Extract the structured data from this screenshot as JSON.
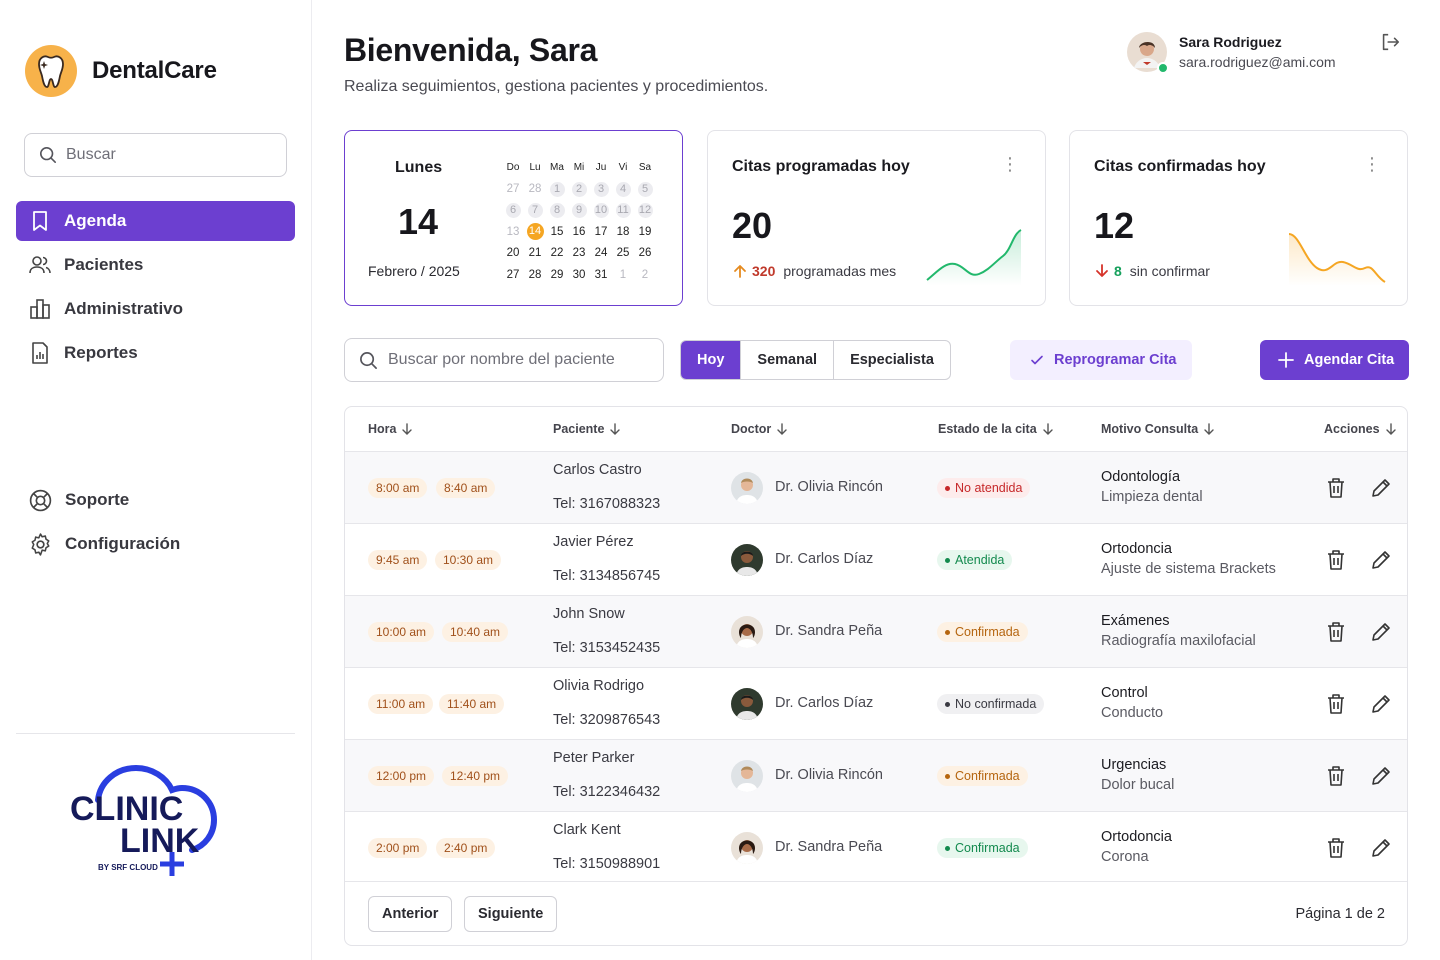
{
  "sidebar": {
    "brand": "DentalCare",
    "search_placeholder": "Buscar",
    "nav": [
      {
        "label": "Agenda",
        "active": true
      },
      {
        "label": "Pacientes"
      },
      {
        "label": "Administrativo"
      },
      {
        "label": "Reportes"
      }
    ],
    "support_label": "Soporte",
    "settings_label": "Configuración",
    "partner_logo": {
      "line1": "CLINIC",
      "line2": "LINK",
      "tagline": "BY SRF CLOUD"
    }
  },
  "header": {
    "greeting": "Bienvenida, Sara",
    "subtitle": "Realiza seguimientos, gestiona pacientes y procedimientos.",
    "user_name": "Sara Rodriguez",
    "user_email": "sara.rodriguez@ami.com"
  },
  "calendar_card": {
    "weekday": "Lunes",
    "day": "14",
    "month_year": "Febrero / 2025",
    "headers": [
      "Do",
      "Lu",
      "Ma",
      "Mi",
      "Ju",
      "Vi",
      "Sa"
    ],
    "weeks": [
      [
        "27",
        "28",
        "1",
        "2",
        "3",
        "4",
        "5"
      ],
      [
        "6",
        "7",
        "8",
        "9",
        "10",
        "11",
        "12"
      ],
      [
        "13",
        "14",
        "15",
        "16",
        "17",
        "18",
        "19"
      ],
      [
        "20",
        "21",
        "22",
        "23",
        "24",
        "25",
        "26"
      ],
      [
        "27",
        "28",
        "29",
        "30",
        "31",
        "1",
        "2"
      ]
    ]
  },
  "stats": {
    "scheduled": {
      "title": "Citas programadas hoy",
      "value": "20",
      "delta": "320",
      "delta_label": "programadas mes",
      "color": "#22b86c",
      "trend": "up"
    },
    "confirmed": {
      "title": "Citas confirmadas hoy",
      "value": "12",
      "delta": "8",
      "delta_label": "sin confirmar",
      "color": "#f5a623",
      "trend": "down"
    }
  },
  "toolbar": {
    "search_placeholder": "Buscar por nombre del paciente",
    "filters": [
      {
        "label": "Hoy",
        "active": true
      },
      {
        "label": "Semanal"
      },
      {
        "label": "Especialista"
      }
    ],
    "reschedule_label": "Reprogramar Cita",
    "book_label": "Agendar Cita",
    "accent": "#6c3fd0"
  },
  "table": {
    "headers": [
      "Hora",
      "Paciente",
      "Doctor",
      "Estado de la cita",
      "Motivo Consulta",
      "Acciones"
    ],
    "rows": [
      {
        "start": "8:00 am",
        "end": "8:40 am",
        "patient": "Carlos Castro",
        "tel": "Tel: 3167088323",
        "doctor": "Dr. Olivia Rincón",
        "status": "No atendida",
        "reason": "Odontología",
        "detail": "Limpieza dental"
      },
      {
        "start": "9:45 am",
        "end": "10:30 am",
        "patient": "Javier Pérez",
        "tel": "Tel: 3134856745",
        "doctor": "Dr. Carlos Díaz",
        "status": "Atendida",
        "reason": "Ortodoncia",
        "detail": "Ajuste de sistema Brackets"
      },
      {
        "start": "10:00 am",
        "end": "10:40 am",
        "patient": "John Snow",
        "tel": "Tel: 3153452435",
        "doctor": "Dr. Sandra Peña",
        "status": "Confirmada",
        "reason": "Exámenes",
        "detail": "Radiografía maxilofacial"
      },
      {
        "start": "11:00 am",
        "end": "11:40 am",
        "patient": "Olivia Rodrigo",
        "tel": "Tel: 3209876543",
        "doctor": "Dr. Carlos Díaz",
        "status": "No confirmada",
        "reason": "Control",
        "detail": "Conducto"
      },
      {
        "start": "12:00 pm",
        "end": "12:40 pm",
        "patient": "Peter Parker",
        "tel": "Tel: 3122346432",
        "doctor": "Dr. Olivia Rincón",
        "status": "Confirmada",
        "reason": "Urgencias",
        "detail": "Dolor bucal"
      },
      {
        "start": "2:00 pm",
        "end": "2:40 pm",
        "patient": "Clark Kent",
        "tel": "Tel: 3150988901",
        "doctor": "Dr. Sandra Peña",
        "status": "Confirmada",
        "reason": "Ortodoncia",
        "detail": "Corona"
      }
    ],
    "prev_label": "Anterior",
    "next_label": "Siguiente",
    "page_info": "Página 1 de 2"
  }
}
